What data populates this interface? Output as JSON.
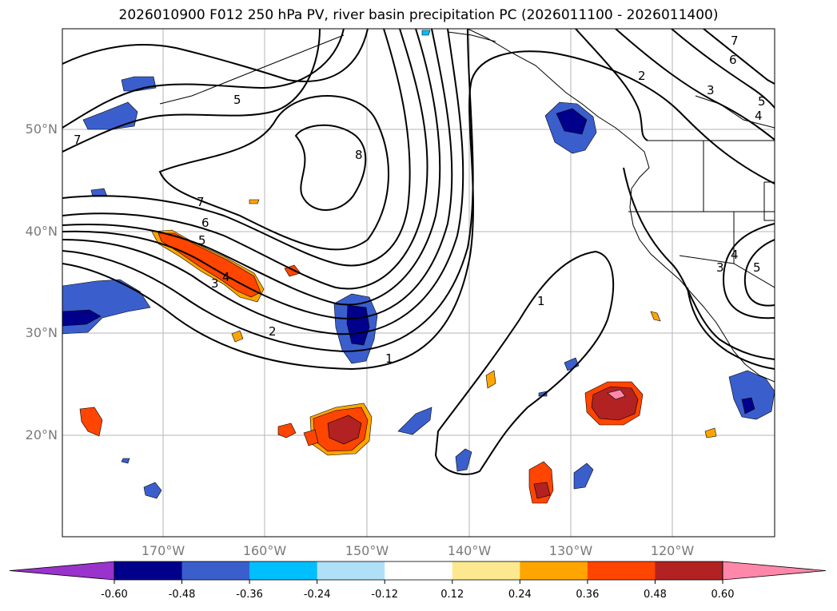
{
  "title": "2026010900 F012 250 hPa PV, river basin precipitation PC (2026011100 - 2026011400)",
  "lat_labels": [
    "50°N",
    "40°N",
    "30°N",
    "20°N"
  ],
  "lon_labels": [
    "170°W",
    "160°W",
    "150°W",
    "140°W",
    "130°W",
    "120°W"
  ],
  "pv_contour_labels": [
    "8",
    "7",
    "6",
    "5",
    "4",
    "3",
    "2",
    "1"
  ],
  "colorbar": {
    "colors": [
      "#9933cc",
      "#00008b",
      "#3a5fcd",
      "#00bfff",
      "#b0e0f8",
      "#ffffff",
      "#fce98f",
      "#ffa500",
      "#ff4500",
      "#b22222",
      "#ff88aa"
    ],
    "tick_labels": [
      "-0.60",
      "-0.48",
      "-0.36",
      "-0.24",
      "-0.12",
      "0.12",
      "0.24",
      "0.36",
      "0.48",
      "0.60"
    ]
  }
}
